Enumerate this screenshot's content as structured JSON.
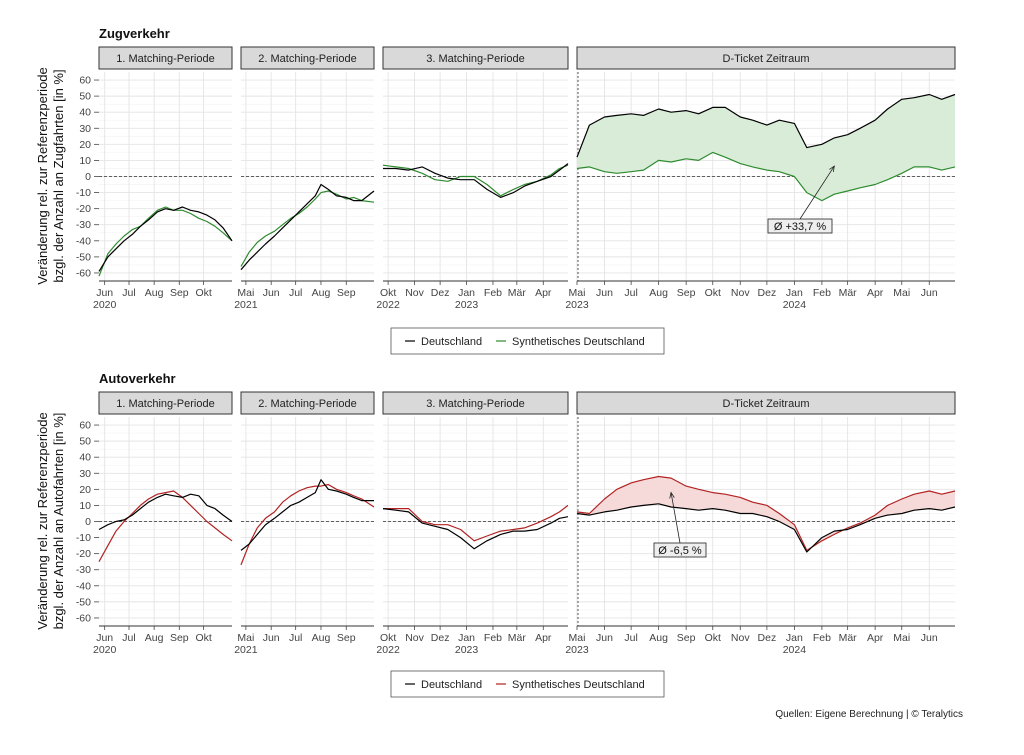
{
  "source": "Quellen: Eigene Berechnung | © Teralytics",
  "legend_labels": {
    "actual": "Deutschland"
  },
  "chart_data": [
    {
      "type": "line",
      "title": "Zugverkehr",
      "ylabel_lines": [
        "Veränderung rel. zur Referenzperiode",
        "bzgl. der Anzahl an Zugfahrten [in %]"
      ],
      "ylim": [
        -65,
        65
      ],
      "yticks": [
        60,
        50,
        40,
        30,
        20,
        10,
        0,
        -10,
        -20,
        -30,
        -40,
        -50,
        -60
      ],
      "grid": true,
      "legend_position": "bottom",
      "synthetic_color": "#2e8b2e",
      "fill_color": "#d8ecd8",
      "annotation": {
        "label": "Ø +33,7 %",
        "panel": 3,
        "date": "2024-02"
      },
      "series": [
        {
          "name": "Deutschland",
          "color": "#000000"
        },
        {
          "name": "Synthetisches Deutschland",
          "color": "#2e8b2e"
        }
      ],
      "panels": [
        {
          "strip": "1. Matching-Periode",
          "xlim": [
            "2020-05-25",
            "2020-11-05"
          ],
          "x_ticks": [
            {
              "date": "2020-06-01",
              "label": "Jun",
              "year": "2020"
            },
            {
              "date": "2020-07-01",
              "label": "Jul"
            },
            {
              "date": "2020-08-01",
              "label": "Aug"
            },
            {
              "date": "2020-09-01",
              "label": "Sep"
            },
            {
              "date": "2020-10-01",
              "label": "Okt"
            }
          ],
          "x": [
            "2020-05-25",
            "2020-06-05",
            "2020-06-15",
            "2020-06-25",
            "2020-07-05",
            "2020-07-15",
            "2020-07-25",
            "2020-08-05",
            "2020-08-15",
            "2020-08-25",
            "2020-09-05",
            "2020-09-15",
            "2020-09-25",
            "2020-10-05",
            "2020-10-15",
            "2020-10-25",
            "2020-11-05"
          ],
          "actual": [
            -59,
            -50,
            -45,
            -40,
            -36,
            -31,
            -27,
            -22,
            -20,
            -21,
            -19,
            -21,
            -22,
            -24,
            -27,
            -32,
            -40
          ],
          "synthetic": [
            -62,
            -48,
            -42,
            -37,
            -33,
            -31,
            -26,
            -21,
            -19,
            -21,
            -21,
            -23,
            -26,
            -28,
            -31,
            -35,
            -40
          ]
        },
        {
          "strip": "2. Matching-Periode",
          "xlim": [
            "2021-04-25",
            "2021-10-05"
          ],
          "x_ticks": [
            {
              "date": "2021-05-01",
              "label": "Mai",
              "year": "2021"
            },
            {
              "date": "2021-06-01",
              "label": "Jun"
            },
            {
              "date": "2021-07-01",
              "label": "Jul"
            },
            {
              "date": "2021-08-01",
              "label": "Aug"
            },
            {
              "date": "2021-09-01",
              "label": "Sep"
            }
          ],
          "x": [
            "2021-04-25",
            "2021-05-05",
            "2021-05-15",
            "2021-05-25",
            "2021-06-05",
            "2021-06-15",
            "2021-06-25",
            "2021-07-05",
            "2021-07-15",
            "2021-07-25",
            "2021-08-01",
            "2021-08-10",
            "2021-08-20",
            "2021-09-01",
            "2021-09-10",
            "2021-09-20",
            "2021-10-05"
          ],
          "actual": [
            -58,
            -52,
            -47,
            -42,
            -37,
            -32,
            -27,
            -22,
            -17,
            -12,
            -5,
            -8,
            -12,
            -13,
            -15,
            -15,
            -9
          ],
          "synthetic": [
            -56,
            -47,
            -41,
            -37,
            -34,
            -30,
            -26,
            -23,
            -19,
            -14,
            -10,
            -9,
            -11,
            -14,
            -13,
            -15,
            -16
          ]
        },
        {
          "strip": "3. Matching-Periode",
          "xlim": [
            "2022-09-25",
            "2023-04-30"
          ],
          "x_ticks": [
            {
              "date": "2022-10-01",
              "label": "Okt",
              "year": "2022"
            },
            {
              "date": "2022-11-01",
              "label": "Nov"
            },
            {
              "date": "2022-12-01",
              "label": "Dez"
            },
            {
              "date": "2023-01-01",
              "label": "Jan",
              "year": "2023"
            },
            {
              "date": "2023-02-01",
              "label": "Feb"
            },
            {
              "date": "2023-03-01",
              "label": "Mär"
            },
            {
              "date": "2023-04-01",
              "label": "Apr"
            }
          ],
          "x": [
            "2022-09-25",
            "2022-10-10",
            "2022-10-25",
            "2022-11-10",
            "2022-11-25",
            "2022-12-10",
            "2022-12-25",
            "2023-01-10",
            "2023-01-25",
            "2023-02-10",
            "2023-02-25",
            "2023-03-10",
            "2023-03-25",
            "2023-04-10",
            "2023-04-20",
            "2023-04-30"
          ],
          "actual": [
            5,
            5,
            4,
            6,
            2,
            -1,
            -2,
            -2,
            -8,
            -13,
            -10,
            -6,
            -3,
            0,
            4,
            8
          ],
          "synthetic": [
            7,
            6,
            5,
            2,
            -2,
            -3,
            0,
            0,
            -5,
            -12,
            -8,
            -5,
            -3,
            1,
            5,
            7
          ]
        },
        {
          "strip": "D-Ticket Zeitraum",
          "xlim": [
            "2023-05-01",
            "2024-06-30"
          ],
          "x_ticks": [
            {
              "date": "2023-05-01",
              "label": "Mai",
              "year": "2023"
            },
            {
              "date": "2023-06-01",
              "label": "Jun"
            },
            {
              "date": "2023-07-01",
              "label": "Jul"
            },
            {
              "date": "2023-08-01",
              "label": "Aug"
            },
            {
              "date": "2023-09-01",
              "label": "Sep"
            },
            {
              "date": "2023-10-01",
              "label": "Okt"
            },
            {
              "date": "2023-11-01",
              "label": "Nov"
            },
            {
              "date": "2023-12-01",
              "label": "Dez"
            },
            {
              "date": "2024-01-01",
              "label": "Jan",
              "year": "2024"
            },
            {
              "date": "2024-02-01",
              "label": "Feb"
            },
            {
              "date": "2024-03-01",
              "label": "Mär"
            },
            {
              "date": "2024-04-01",
              "label": "Apr"
            },
            {
              "date": "2024-05-01",
              "label": "Mai"
            },
            {
              "date": "2024-06-01",
              "label": "Jun"
            }
          ],
          "x": [
            "2023-05-01",
            "2023-05-15",
            "2023-06-01",
            "2023-06-15",
            "2023-07-01",
            "2023-07-15",
            "2023-08-01",
            "2023-08-15",
            "2023-09-01",
            "2023-09-15",
            "2023-10-01",
            "2023-10-15",
            "2023-11-01",
            "2023-11-15",
            "2023-12-01",
            "2023-12-15",
            "2024-01-01",
            "2024-01-15",
            "2024-02-01",
            "2024-02-15",
            "2024-03-01",
            "2024-03-15",
            "2024-04-01",
            "2024-04-15",
            "2024-05-01",
            "2024-05-15",
            "2024-06-01",
            "2024-06-15",
            "2024-06-30"
          ],
          "actual": [
            12,
            32,
            37,
            38,
            39,
            38,
            42,
            40,
            41,
            39,
            43,
            43,
            37,
            35,
            32,
            35,
            33,
            18,
            20,
            24,
            26,
            30,
            35,
            42,
            48,
            49,
            51,
            48,
            51
          ],
          "synthetic": [
            5,
            6,
            3,
            2,
            3,
            4,
            10,
            9,
            11,
            10,
            15,
            12,
            8,
            6,
            4,
            3,
            0,
            -10,
            -15,
            -11,
            -9,
            -7,
            -5,
            -2,
            2,
            6,
            6,
            4,
            6
          ]
        }
      ]
    },
    {
      "type": "line",
      "title": "Autoverkehr",
      "ylabel_lines": [
        "Veränderung rel. zur Referenzperiode",
        "bzgl. der Anzahl an Autofahrten [in %]"
      ],
      "ylim": [
        -65,
        65
      ],
      "yticks": [
        60,
        50,
        40,
        30,
        20,
        10,
        0,
        -10,
        -20,
        -30,
        -40,
        -50,
        -60
      ],
      "grid": true,
      "legend_position": "bottom",
      "synthetic_color": "#b22222",
      "fill_color": "#f6dada",
      "annotation": {
        "label": "Ø -6,5 %",
        "panel": 3,
        "date": "2023-08"
      },
      "series": [
        {
          "name": "Deutschland",
          "color": "#000000"
        },
        {
          "name": "Synthetisches Deutschland",
          "color": "#b22222"
        }
      ],
      "panels": [
        {
          "strip": "1. Matching-Periode",
          "xlim": [
            "2020-05-25",
            "2020-11-05"
          ],
          "x_ticks": [
            {
              "date": "2020-06-01",
              "label": "Jun",
              "year": "2020"
            },
            {
              "date": "2020-07-01",
              "label": "Jul"
            },
            {
              "date": "2020-08-01",
              "label": "Aug"
            },
            {
              "date": "2020-09-01",
              "label": "Sep"
            },
            {
              "date": "2020-10-01",
              "label": "Okt"
            }
          ],
          "x": [
            "2020-05-25",
            "2020-06-05",
            "2020-06-15",
            "2020-06-25",
            "2020-07-05",
            "2020-07-15",
            "2020-07-25",
            "2020-08-05",
            "2020-08-15",
            "2020-08-25",
            "2020-09-05",
            "2020-09-15",
            "2020-09-25",
            "2020-10-05",
            "2020-10-15",
            "2020-10-25",
            "2020-11-05"
          ],
          "actual": [
            -5,
            -2,
            0,
            1,
            4,
            8,
            12,
            15,
            17,
            16,
            15,
            17,
            16,
            10,
            8,
            4,
            0
          ],
          "synthetic": [
            -25,
            -15,
            -6,
            0,
            5,
            10,
            14,
            17,
            18,
            19,
            15,
            10,
            5,
            0,
            -4,
            -8,
            -12
          ]
        },
        {
          "strip": "2. Matching-Periode",
          "xlim": [
            "2021-04-25",
            "2021-10-05"
          ],
          "x_ticks": [
            {
              "date": "2021-05-01",
              "label": "Mai",
              "year": "2021"
            },
            {
              "date": "2021-06-01",
              "label": "Jun"
            },
            {
              "date": "2021-07-01",
              "label": "Jul"
            },
            {
              "date": "2021-08-01",
              "label": "Aug"
            },
            {
              "date": "2021-09-01",
              "label": "Sep"
            }
          ],
          "x": [
            "2021-04-25",
            "2021-05-05",
            "2021-05-15",
            "2021-05-25",
            "2021-06-05",
            "2021-06-15",
            "2021-06-25",
            "2021-07-05",
            "2021-07-15",
            "2021-07-25",
            "2021-08-01",
            "2021-08-10",
            "2021-08-20",
            "2021-09-01",
            "2021-09-10",
            "2021-09-20",
            "2021-10-05"
          ],
          "actual": [
            -18,
            -14,
            -8,
            -2,
            2,
            6,
            10,
            12,
            15,
            18,
            26,
            20,
            19,
            17,
            15,
            13,
            13
          ],
          "synthetic": [
            -27,
            -14,
            -4,
            2,
            6,
            12,
            16,
            19,
            21,
            22,
            22,
            23,
            20,
            18,
            16,
            14,
            9
          ]
        },
        {
          "strip": "3. Matching-Periode",
          "xlim": [
            "2022-09-25",
            "2023-04-30"
          ],
          "x_ticks": [
            {
              "date": "2022-10-01",
              "label": "Okt",
              "year": "2022"
            },
            {
              "date": "2022-11-01",
              "label": "Nov"
            },
            {
              "date": "2022-12-01",
              "label": "Dez"
            },
            {
              "date": "2023-01-01",
              "label": "Jan",
              "year": "2023"
            },
            {
              "date": "2023-02-01",
              "label": "Feb"
            },
            {
              "date": "2023-03-01",
              "label": "Mär"
            },
            {
              "date": "2023-04-01",
              "label": "Apr"
            }
          ],
          "x": [
            "2022-09-25",
            "2022-10-10",
            "2022-10-25",
            "2022-11-10",
            "2022-11-25",
            "2022-12-10",
            "2022-12-25",
            "2023-01-10",
            "2023-01-25",
            "2023-02-10",
            "2023-02-25",
            "2023-03-10",
            "2023-03-25",
            "2023-04-10",
            "2023-04-20",
            "2023-04-30"
          ],
          "actual": [
            8,
            7,
            6,
            -1,
            -3,
            -5,
            -10,
            -17,
            -12,
            -8,
            -6,
            -6,
            -5,
            -1,
            2,
            3
          ],
          "synthetic": [
            8,
            8,
            8,
            0,
            -2,
            -2,
            -5,
            -12,
            -9,
            -6,
            -5,
            -4,
            -1,
            3,
            6,
            10
          ]
        },
        {
          "strip": "D-Ticket Zeitraum",
          "xlim": [
            "2023-05-01",
            "2024-06-30"
          ],
          "x_ticks": [
            {
              "date": "2023-05-01",
              "label": "Mai",
              "year": "2023"
            },
            {
              "date": "2023-06-01",
              "label": "Jun"
            },
            {
              "date": "2023-07-01",
              "label": "Jul"
            },
            {
              "date": "2023-08-01",
              "label": "Aug"
            },
            {
              "date": "2023-09-01",
              "label": "Sep"
            },
            {
              "date": "2023-10-01",
              "label": "Okt"
            },
            {
              "date": "2023-11-01",
              "label": "Nov"
            },
            {
              "date": "2023-12-01",
              "label": "Dez"
            },
            {
              "date": "2024-01-01",
              "label": "Jan",
              "year": "2024"
            },
            {
              "date": "2024-02-01",
              "label": "Feb"
            },
            {
              "date": "2024-03-01",
              "label": "Mär"
            },
            {
              "date": "2024-04-01",
              "label": "Apr"
            },
            {
              "date": "2024-05-01",
              "label": "Mai"
            },
            {
              "date": "2024-06-01",
              "label": "Jun"
            }
          ],
          "x": [
            "2023-05-01",
            "2023-05-15",
            "2023-06-01",
            "2023-06-15",
            "2023-07-01",
            "2023-07-15",
            "2023-08-01",
            "2023-08-15",
            "2023-09-01",
            "2023-09-15",
            "2023-10-01",
            "2023-10-15",
            "2023-11-01",
            "2023-11-15",
            "2023-12-01",
            "2023-12-15",
            "2024-01-01",
            "2024-01-15",
            "2024-02-01",
            "2024-02-15",
            "2024-03-01",
            "2024-03-15",
            "2024-04-01",
            "2024-04-15",
            "2024-05-01",
            "2024-05-15",
            "2024-06-01",
            "2024-06-15",
            "2024-06-30"
          ],
          "actual": [
            5,
            4,
            6,
            7,
            9,
            10,
            11,
            9,
            8,
            7,
            8,
            7,
            5,
            5,
            3,
            0,
            -5,
            -19,
            -10,
            -6,
            -5,
            -2,
            2,
            4,
            5,
            7,
            8,
            7,
            9
          ],
          "synthetic": [
            6,
            5,
            14,
            20,
            24,
            26,
            28,
            27,
            22,
            20,
            18,
            17,
            15,
            12,
            10,
            5,
            -2,
            -18,
            -12,
            -8,
            -4,
            -1,
            4,
            10,
            14,
            17,
            19,
            17,
            19
          ]
        }
      ]
    }
  ]
}
